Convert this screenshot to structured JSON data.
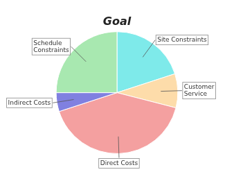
{
  "chart_data": {
    "type": "pie",
    "title": "Goal",
    "categories": [
      "Site Constraints",
      "Customer\nService",
      "Direct Costs",
      "Indirect Costs",
      "Schedule\nConstraints"
    ],
    "values": [
      20,
      9,
      41,
      5,
      25
    ],
    "colors": [
      "#7EEAEA",
      "#FDDCAA",
      "#F4A0A0",
      "#8080E0",
      "#A8E8B0"
    ]
  }
}
